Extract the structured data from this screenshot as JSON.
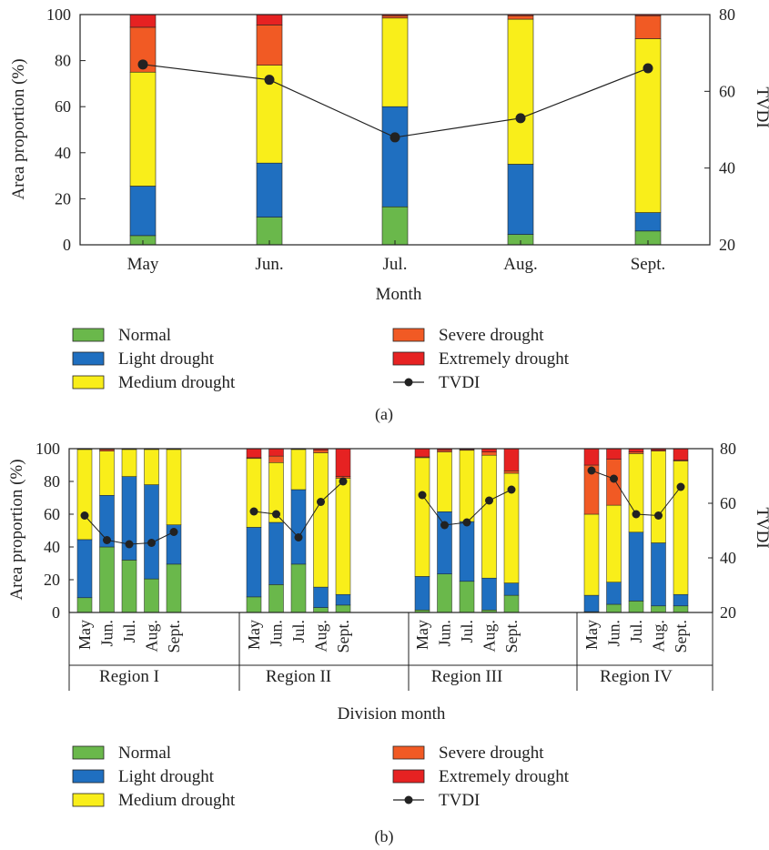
{
  "chart_data": [
    {
      "type": "bar",
      "panel_label": "(a)",
      "categories": [
        "May",
        "Jun.",
        "Jul.",
        "Aug.",
        "Sept."
      ],
      "xlabel": "Month",
      "ylabel": "Area proportion (%)",
      "ylim": [
        0,
        100
      ],
      "y_ticks": [
        0,
        20,
        40,
        60,
        80,
        100
      ],
      "y2label": "TVDI",
      "y2lim": [
        20,
        80
      ],
      "y2_ticks": [
        20,
        40,
        60,
        80
      ],
      "stacked": true,
      "series": [
        {
          "name": "Normal",
          "color": "#6ab84b",
          "values": [
            4,
            12,
            16.5,
            4.5,
            6
          ]
        },
        {
          "name": "Light drought",
          "color": "#1f6fc0",
          "values": [
            21.5,
            23.5,
            43.5,
            30.5,
            8
          ]
        },
        {
          "name": "Medium drought",
          "color": "#f9ee1a",
          "values": [
            49.5,
            42.5,
            38.5,
            63,
            75.5
          ]
        },
        {
          "name": "Severe drought",
          "color": "#f15a24",
          "values": [
            19.5,
            17.5,
            1,
            1.5,
            10
          ]
        },
        {
          "name": "Extremely drought",
          "color": "#e62222",
          "values": [
            5.5,
            4.5,
            0.5,
            0.5,
            0.5
          ]
        }
      ],
      "line_series": {
        "name": "TVDI",
        "color": "#222222",
        "values": [
          67,
          63,
          48,
          53,
          66
        ]
      },
      "legend": [
        "Normal",
        "Light drought",
        "Medium drought",
        "Severe drought",
        "Extremely drought",
        "TVDI"
      ],
      "grid": false,
      "legend_position": "bottom"
    },
    {
      "type": "bar",
      "panel_label": "(b)",
      "groups": [
        {
          "name": "Region I",
          "months": [
            "May",
            "Jun.",
            "Jul.",
            "Aug.",
            "Sept."
          ],
          "Normal": [
            9,
            40,
            32,
            20.5,
            29.5
          ],
          "Light drought": [
            35.5,
            31.5,
            51,
            57.5,
            24
          ],
          "Medium drought": [
            55,
            27,
            16.5,
            21.5,
            46
          ],
          "Severe drought": [
            0.3,
            1,
            0.3,
            0.3,
            0.3
          ],
          "Extremely drought": [
            0.2,
            0.5,
            0.2,
            0.2,
            0.2
          ],
          "TVDI": [
            55.5,
            46.5,
            45,
            45.5,
            49.5
          ]
        },
        {
          "name": "Region II",
          "months": [
            "May",
            "Jun.",
            "Jul.",
            "Aug.",
            "Sept."
          ],
          "Normal": [
            9.5,
            17,
            29.5,
            3,
            4.5
          ],
          "Light drought": [
            42.5,
            38,
            45.5,
            12.5,
            6.5
          ],
          "Medium drought": [
            42,
            36.5,
            24.5,
            82,
            71
          ],
          "Severe drought": [
            0.5,
            4,
            0.3,
            1.5,
            1
          ],
          "Extremely drought": [
            5.5,
            4.5,
            0.2,
            1,
            17
          ],
          "TVDI": [
            57,
            56,
            47.5,
            60.5,
            68
          ]
        },
        {
          "name": "Region III",
          "months": [
            "May",
            "Jun.",
            "Jul.",
            "Aug.",
            "Sept."
          ],
          "Normal": [
            1.5,
            23.5,
            19,
            1.5,
            10.5
          ],
          "Light drought": [
            20.5,
            38,
            36.5,
            19.5,
            7.5
          ],
          "Medium drought": [
            72.5,
            36.5,
            43.5,
            75,
            67
          ],
          "Severe drought": [
            0.5,
            1,
            0.5,
            2,
            1.5
          ],
          "Extremely drought": [
            5,
            1,
            0.5,
            2,
            13.5
          ],
          "TVDI": [
            63,
            52,
            53,
            61,
            65
          ]
        },
        {
          "name": "Region IV",
          "months": [
            "May",
            "Jun.",
            "Jul.",
            "Aug.",
            "Sept."
          ],
          "Normal": [
            0.5,
            5,
            7,
            4,
            4
          ],
          "Light drought": [
            10,
            13.5,
            42,
            38.5,
            7
          ],
          "Medium drought": [
            49.5,
            47,
            48,
            56,
            81.5
          ],
          "Severe drought": [
            30,
            28,
            1,
            0.5,
            0.5
          ],
          "Extremely drought": [
            10,
            6.5,
            2,
            1,
            7
          ],
          "TVDI": [
            72,
            69,
            56,
            55.5,
            66
          ]
        }
      ],
      "xlabel": "Division month",
      "ylabel": "Area proportion (%)",
      "ylim": [
        0,
        100
      ],
      "y_ticks": [
        0,
        20,
        40,
        60,
        80,
        100
      ],
      "y2label": "TVDI",
      "y2lim": [
        20,
        80
      ],
      "y2_ticks": [
        20,
        40,
        60,
        80
      ],
      "stacked": true,
      "series_names": [
        "Normal",
        "Light drought",
        "Medium drought",
        "Severe drought",
        "Extremely drought"
      ],
      "colors": {
        "Normal": "#6ab84b",
        "Light drought": "#1f6fc0",
        "Medium drought": "#f9ee1a",
        "Severe drought": "#f15a24",
        "Extremely drought": "#e62222",
        "TVDI": "#222222"
      },
      "legend": [
        "Normal",
        "Light drought",
        "Medium drought",
        "Severe drought",
        "Extremely drought",
        "TVDI"
      ],
      "grid": false,
      "legend_position": "bottom"
    }
  ]
}
